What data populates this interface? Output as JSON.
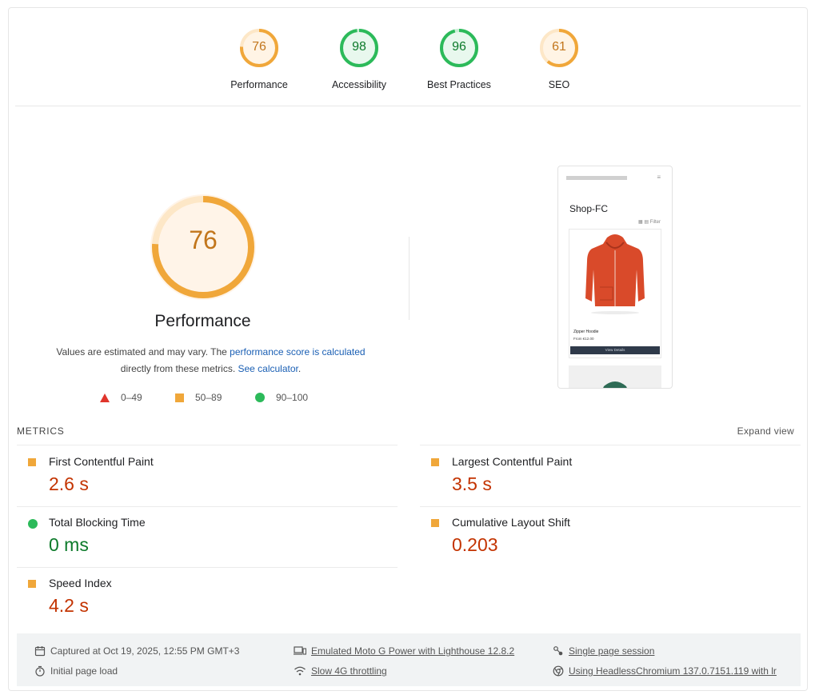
{
  "categories": [
    {
      "score": "76",
      "label": "Performance",
      "status": "average"
    },
    {
      "score": "98",
      "label": "Accessibility",
      "status": "pass"
    },
    {
      "score": "96",
      "label": "Best Practices",
      "status": "pass"
    },
    {
      "score": "61",
      "label": "SEO",
      "status": "average"
    }
  ],
  "performance": {
    "score": "76",
    "title": "Performance",
    "desc_pre": "Values are estimated and may vary. The ",
    "desc_link1": "performance score is calculated",
    "desc_mid": "directly from these metrics. ",
    "desc_link2": "See calculator",
    "desc_post": "."
  },
  "legend": {
    "fail": "0–49",
    "average": "50–89",
    "pass": "90–100"
  },
  "screenshot": {
    "site_title": "Shop-FC",
    "view_label": "Filter",
    "product_name": "Zipper Hoodie",
    "product_price": "From €12.00",
    "button_label": "View Details"
  },
  "metrics_section": {
    "heading": "METRICS",
    "expand_label": "Expand view"
  },
  "metrics": {
    "fcp": {
      "name": "First Contentful Paint",
      "value": "2.6 s",
      "status": "average"
    },
    "lcp": {
      "name": "Largest Contentful Paint",
      "value": "3.5 s",
      "status": "average"
    },
    "tbt": {
      "name": "Total Blocking Time",
      "value": "0 ms",
      "status": "pass"
    },
    "cls": {
      "name": "Cumulative Layout Shift",
      "value": "0.203",
      "status": "average"
    },
    "si": {
      "name": "Speed Index",
      "value": "4.2 s",
      "status": "average"
    }
  },
  "footer": {
    "captured": "Captured at Oct 19, 2025, 12:55 PM GMT+3",
    "initial_load": "Initial page load",
    "device": "Emulated Moto G Power with Lighthouse 12.8.2",
    "throttling": "Slow 4G throttling",
    "session": "Single page session",
    "browser": "Using HeadlessChromium 137.0.7151.119 with lr"
  },
  "colors": {
    "average": "#f0a73a",
    "pass": "#2cba5a",
    "fail": "#e0352b",
    "average_text": "#c33300",
    "pass_text": "#0c7a2a",
    "link": "#1a5fb4"
  }
}
